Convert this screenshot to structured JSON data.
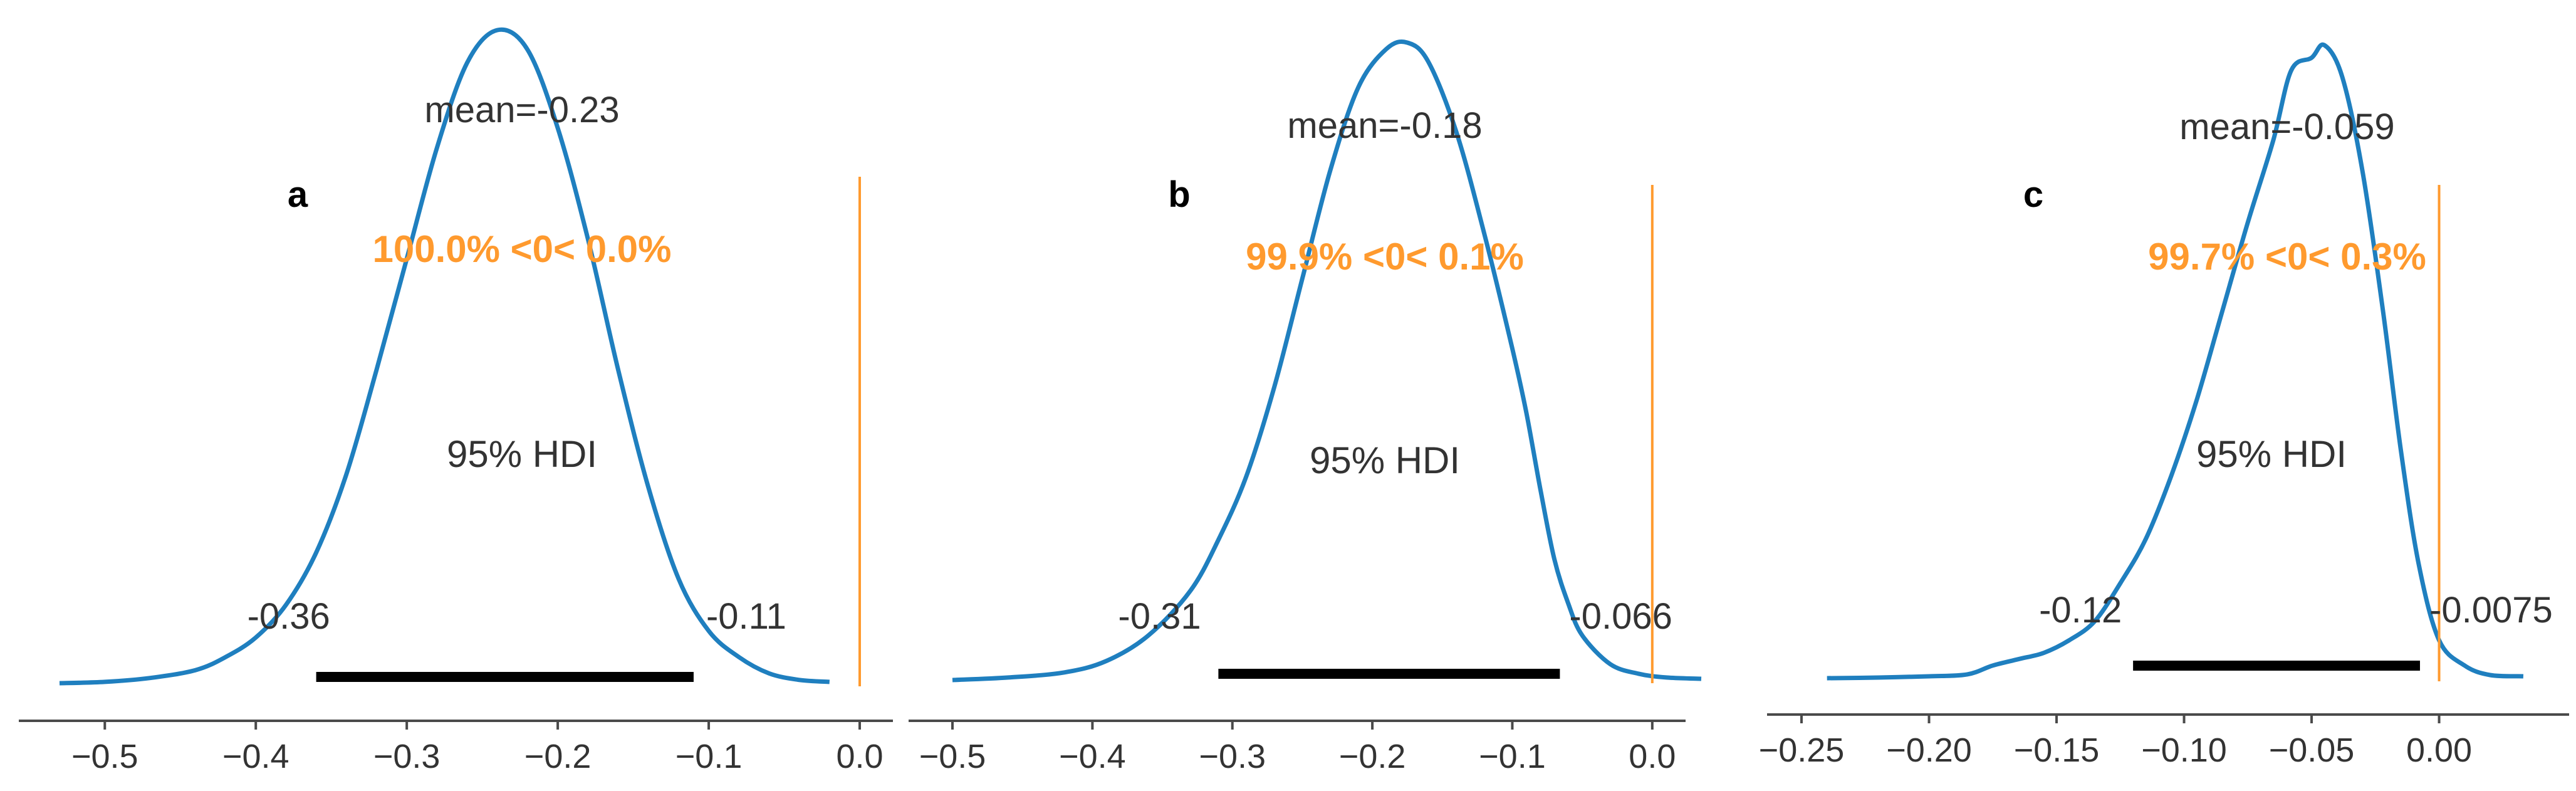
{
  "colors": {
    "density": "#1f7fbf",
    "reference": "#ff9a2e",
    "hdi_bar": "#000000",
    "axis": "#4a4a4a",
    "text": "#333333"
  },
  "chart_data": [
    {
      "type": "line",
      "panel_label": "a",
      "title": "",
      "xlabel": "",
      "ylabel": "",
      "xlim": [
        -0.53,
        0.0
      ],
      "x_ticks": [
        -0.5,
        -0.4,
        -0.3,
        -0.2,
        -0.1,
        0.0
      ],
      "x_tick_labels": [
        "−0.5",
        "−0.4",
        "−0.3",
        "−0.2",
        "−0.1",
        "0.0"
      ],
      "density": {
        "x": [
          -0.53,
          -0.5,
          -0.47,
          -0.44,
          -0.42,
          -0.4,
          -0.38,
          -0.36,
          -0.34,
          -0.32,
          -0.3,
          -0.28,
          -0.26,
          -0.24,
          -0.22,
          -0.2,
          -0.18,
          -0.16,
          -0.14,
          -0.12,
          -0.1,
          -0.08,
          -0.06,
          -0.04,
          -0.02
        ],
        "y": [
          0.0,
          0.002,
          0.008,
          0.02,
          0.04,
          0.07,
          0.12,
          0.2,
          0.32,
          0.48,
          0.65,
          0.82,
          0.95,
          1.0,
          0.97,
          0.85,
          0.68,
          0.48,
          0.3,
          0.16,
          0.08,
          0.04,
          0.015,
          0.005,
          0.002
        ]
      },
      "mean_label": "mean=-0.23",
      "reference_value": 0.0,
      "reference_label": "100.0% <0< 0.0%",
      "hdi_label": "95% HDI",
      "hdi": [
        -0.36,
        -0.11
      ],
      "hdi_labels": [
        "-0.36",
        "-0.11"
      ]
    },
    {
      "type": "line",
      "panel_label": "b",
      "title": "",
      "xlabel": "",
      "ylabel": "",
      "xlim": [
        -0.5,
        0.035
      ],
      "x_ticks": [
        -0.5,
        -0.4,
        -0.3,
        -0.2,
        -0.1,
        0.0
      ],
      "x_tick_labels": [
        "−0.5",
        "−0.4",
        "−0.3",
        "−0.2",
        "−0.1",
        "0.0"
      ],
      "density": {
        "x": [
          -0.5,
          -0.46,
          -0.42,
          -0.39,
          -0.36,
          -0.33,
          -0.31,
          -0.29,
          -0.27,
          -0.25,
          -0.23,
          -0.21,
          -0.19,
          -0.175,
          -0.16,
          -0.14,
          -0.12,
          -0.1,
          -0.09,
          -0.08,
          -0.07,
          -0.06,
          -0.05,
          -0.03,
          -0.01,
          0.01,
          0.035
        ],
        "y": [
          0.0,
          0.004,
          0.012,
          0.03,
          0.07,
          0.14,
          0.22,
          0.32,
          0.46,
          0.63,
          0.8,
          0.93,
          0.99,
          1.0,
          0.97,
          0.86,
          0.7,
          0.52,
          0.42,
          0.3,
          0.19,
          0.12,
          0.07,
          0.025,
          0.01,
          0.004,
          0.002
        ]
      },
      "mean_label": "mean=-0.18",
      "reference_value": 0.0,
      "reference_label": "99.9% <0< 0.1%",
      "hdi_label": "95% HDI",
      "hdi": [
        -0.31,
        -0.066
      ],
      "hdi_labels": [
        "-0.31",
        "-0.066"
      ]
    },
    {
      "type": "line",
      "panel_label": "c",
      "title": "",
      "xlabel": "",
      "ylabel": "",
      "xlim": [
        -0.25,
        0.035
      ],
      "x_ticks": [
        -0.25,
        -0.2,
        -0.15,
        -0.1,
        -0.05,
        0.0
      ],
      "x_tick_labels": [
        "−0.25",
        "−0.20",
        "−0.15",
        "−0.10",
        "−0.05",
        "0.00"
      ],
      "density": {
        "x": [
          -0.24,
          -0.22,
          -0.2,
          -0.185,
          -0.175,
          -0.165,
          -0.155,
          -0.145,
          -0.135,
          -0.125,
          -0.115,
          -0.105,
          -0.095,
          -0.085,
          -0.075,
          -0.065,
          -0.058,
          -0.05,
          -0.045,
          -0.038,
          -0.03,
          -0.022,
          -0.015,
          -0.008,
          0.0,
          0.01,
          0.02,
          0.033
        ],
        "y": [
          0.0,
          0.001,
          0.003,
          0.006,
          0.02,
          0.03,
          0.04,
          0.06,
          0.09,
          0.15,
          0.22,
          0.32,
          0.44,
          0.58,
          0.72,
          0.85,
          0.96,
          0.98,
          1.0,
          0.95,
          0.8,
          0.58,
          0.36,
          0.18,
          0.06,
          0.02,
          0.005,
          0.003
        ]
      },
      "mean_label": "mean=-0.059",
      "reference_value": 0.0,
      "reference_label": "99.7% <0< 0.3%",
      "hdi_label": "95% HDI",
      "hdi": [
        -0.12,
        -0.0075
      ],
      "hdi_labels": [
        "-0.12",
        "-0.0075"
      ]
    }
  ]
}
